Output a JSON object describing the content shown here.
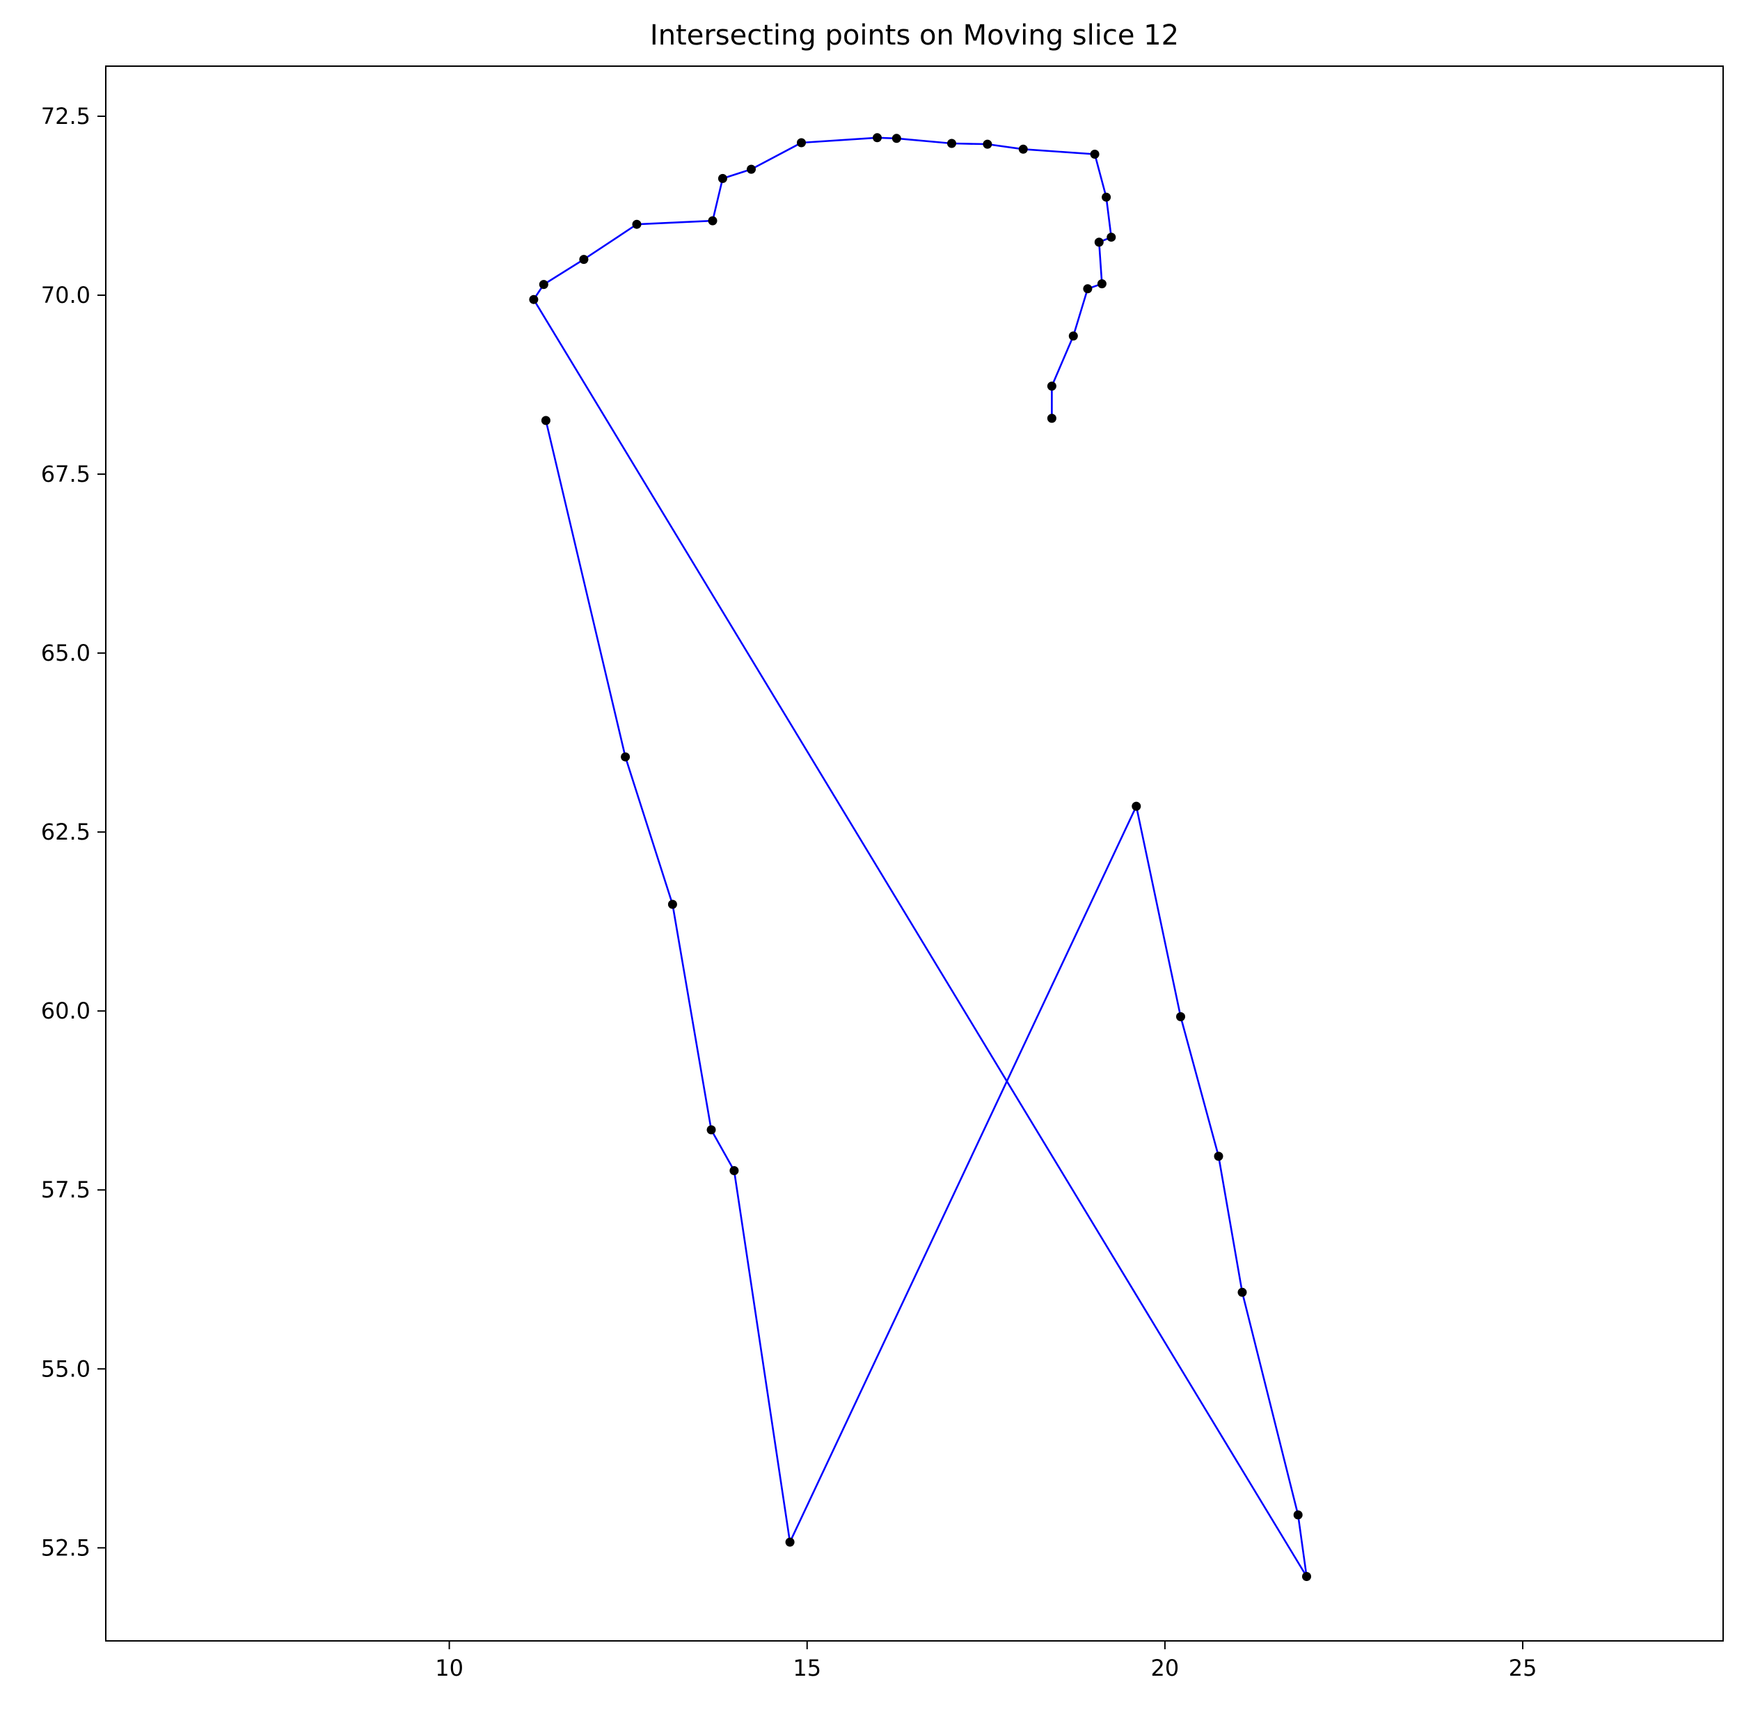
{
  "chart_data": {
    "type": "line",
    "title": "Intersecting points on Moving slice 12",
    "xlabel": "",
    "ylabel": "",
    "xlim": [
      5.2,
      27.8
    ],
    "ylim": [
      51.2,
      73.2
    ],
    "xticks": [
      "10",
      "15",
      "20",
      "25"
    ],
    "yticks": [
      "52.5",
      "55.0",
      "57.5",
      "60.0",
      "62.5",
      "65.0",
      "67.5",
      "70.0",
      "72.5"
    ],
    "grid": false,
    "colors": {
      "line": "#0000ff",
      "marker": "#000000"
    },
    "series": [
      {
        "x": [
          18.42,
          18.42,
          18.72,
          18.92,
          19.12,
          19.08,
          19.25,
          19.18,
          19.02,
          18.02,
          17.52,
          17.02,
          16.25,
          15.98,
          14.92,
          14.22,
          13.82,
          13.68,
          12.62,
          11.88,
          11.32,
          11.18,
          21.98,
          21.86,
          21.08,
          20.75,
          20.22,
          19.6,
          14.76,
          13.98,
          13.66,
          13.12,
          12.46,
          11.35
        ],
        "y": [
          68.28,
          68.73,
          69.43,
          70.09,
          70.16,
          70.74,
          70.81,
          71.37,
          71.97,
          72.04,
          72.11,
          72.12,
          72.19,
          72.2,
          72.13,
          71.76,
          71.63,
          71.04,
          70.99,
          70.5,
          70.15,
          69.94,
          52.1,
          52.96,
          56.07,
          57.97,
          59.92,
          62.86,
          52.58,
          57.77,
          58.34,
          61.49,
          63.55,
          68.25
        ]
      }
    ]
  }
}
